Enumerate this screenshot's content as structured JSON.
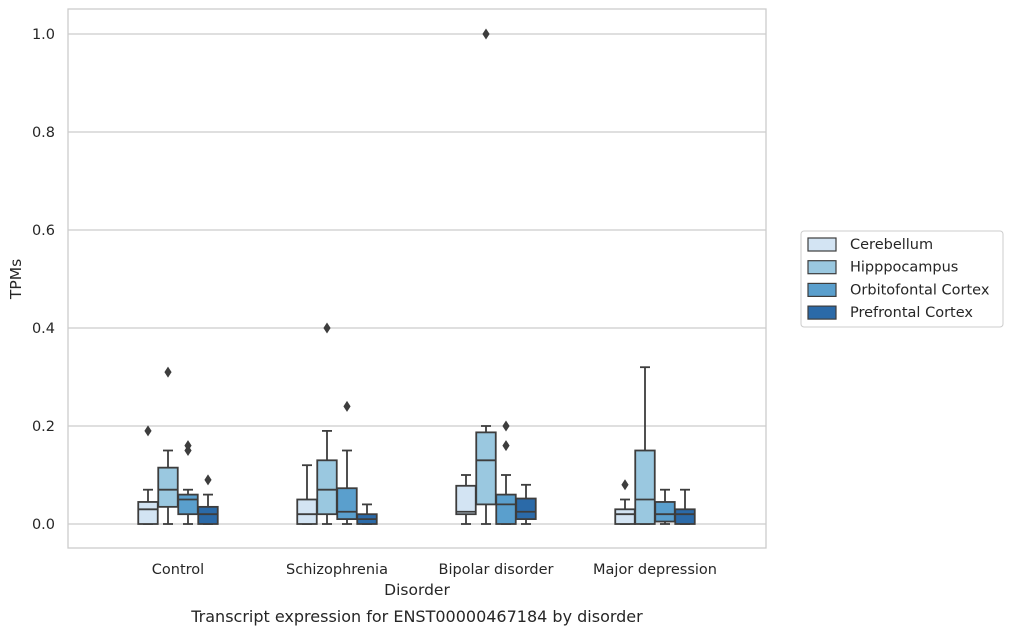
{
  "chart_data": {
    "type": "boxplot",
    "title": "",
    "caption": "Transcript expression for ENST00000467184 by disorder",
    "xlabel": "Disorder",
    "ylabel": "TPMs",
    "ylim": [
      -0.05,
      1.05
    ],
    "yticks": [
      0.0,
      0.2,
      0.4,
      0.6,
      0.8,
      1.0
    ],
    "ytick_labels": [
      "0.0",
      "0.2",
      "0.4",
      "0.6",
      "0.8",
      "1.0"
    ],
    "grid": "horizontal",
    "legend_position": "right",
    "categories": [
      "Control",
      "Schizophrenia",
      "Bipolar disorder",
      "Major depression"
    ],
    "series": [
      {
        "name": "Cerebellum",
        "color": "#d3e4f3",
        "boxes": [
          {
            "whislo": 0.0,
            "q1": 0.0,
            "med": 0.03,
            "q3": 0.045,
            "whishi": 0.07,
            "fliers": [
              0.19
            ]
          },
          {
            "whislo": 0.0,
            "q1": 0.0,
            "med": 0.02,
            "q3": 0.05,
            "whishi": 0.12,
            "fliers": []
          },
          {
            "whislo": 0.0,
            "q1": 0.02,
            "med": 0.025,
            "q3": 0.078,
            "whishi": 0.1,
            "fliers": []
          },
          {
            "whislo": 0.0,
            "q1": 0.0,
            "med": 0.02,
            "q3": 0.03,
            "whishi": 0.05,
            "fliers": [
              0.08
            ]
          }
        ]
      },
      {
        "name": "Hipppocampus",
        "color": "#9ac8e0",
        "boxes": [
          {
            "whislo": 0.0,
            "q1": 0.035,
            "med": 0.07,
            "q3": 0.115,
            "whishi": 0.15,
            "fliers": [
              0.31
            ]
          },
          {
            "whislo": 0.0,
            "q1": 0.02,
            "med": 0.07,
            "q3": 0.13,
            "whishi": 0.19,
            "fliers": [
              0.4
            ]
          },
          {
            "whislo": 0.0,
            "q1": 0.04,
            "med": 0.13,
            "q3": 0.187,
            "whishi": 0.2,
            "fliers": [
              1.0
            ]
          },
          {
            "whislo": 0.0,
            "q1": 0.0,
            "med": 0.05,
            "q3": 0.15,
            "whishi": 0.32,
            "fliers": []
          }
        ]
      },
      {
        "name": "Orbitofontal Cortex",
        "color": "#5a9fcd",
        "boxes": [
          {
            "whislo": 0.0,
            "q1": 0.02,
            "med": 0.05,
            "q3": 0.06,
            "whishi": 0.07,
            "fliers": [
              0.15,
              0.16
            ]
          },
          {
            "whislo": 0.0,
            "q1": 0.01,
            "med": 0.025,
            "q3": 0.073,
            "whishi": 0.15,
            "fliers": [
              0.24
            ]
          },
          {
            "whislo": 0.0,
            "q1": 0.0,
            "med": 0.04,
            "q3": 0.06,
            "whishi": 0.1,
            "fliers": [
              0.16,
              0.2
            ]
          },
          {
            "whislo": 0.0,
            "q1": 0.005,
            "med": 0.02,
            "q3": 0.045,
            "whishi": 0.07,
            "fliers": []
          }
        ]
      },
      {
        "name": "Prefrontal Cortex",
        "color": "#2b6aa8",
        "boxes": [
          {
            "whislo": 0.0,
            "q1": 0.0,
            "med": 0.02,
            "q3": 0.035,
            "whishi": 0.06,
            "fliers": [
              0.09
            ]
          },
          {
            "whislo": 0.0,
            "q1": 0.0,
            "med": 0.01,
            "q3": 0.02,
            "whishi": 0.04,
            "fliers": []
          },
          {
            "whislo": 0.0,
            "q1": 0.01,
            "med": 0.025,
            "q3": 0.052,
            "whishi": 0.08,
            "fliers": []
          },
          {
            "whislo": 0.0,
            "q1": 0.0,
            "med": 0.02,
            "q3": 0.03,
            "whishi": 0.07,
            "fliers": []
          }
        ]
      }
    ]
  }
}
